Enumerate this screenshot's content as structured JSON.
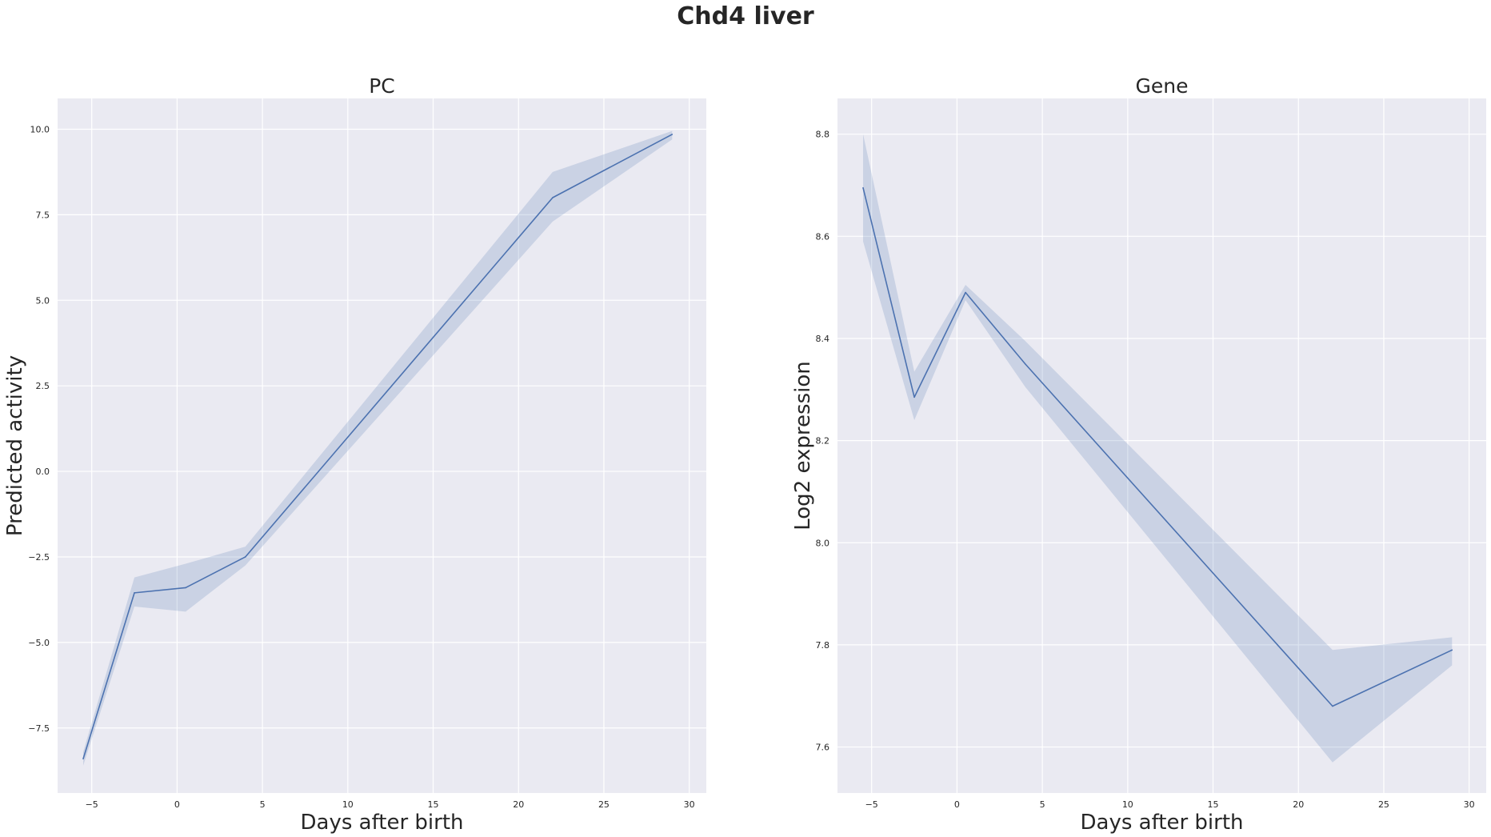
{
  "figure": {
    "suptitle": "Chd4 liver"
  },
  "colors": {
    "line": "#4c72b0",
    "band": "#4c72b0",
    "plot_background": "#eaeaf2",
    "grid": "#ffffff"
  },
  "chart_data": [
    {
      "type": "line",
      "title": "PC",
      "xlabel": "Days after birth",
      "ylabel": "Predicted activity",
      "xlim": [
        -7,
        31
      ],
      "ylim": [
        -9.4,
        10.9
      ],
      "xticks": [
        -5,
        0,
        5,
        10,
        15,
        20,
        25,
        30
      ],
      "xtick_labels": [
        "−5",
        "0",
        "5",
        "10",
        "15",
        "20",
        "25",
        "30"
      ],
      "yticks": [
        -7.5,
        -5.0,
        -2.5,
        0.0,
        2.5,
        5.0,
        7.5,
        10.0
      ],
      "ytick_labels": [
        "−7.5",
        "−5.0",
        "−2.5",
        "0.0",
        "2.5",
        "5.0",
        "7.5",
        "10.0"
      ],
      "grid": true,
      "series": [
        {
          "x": [
            -5.5,
            -2.5,
            0.5,
            4,
            22,
            29
          ],
          "y": [
            -8.4,
            -3.55,
            -3.4,
            -2.5,
            8.0,
            9.85
          ],
          "lower": [
            -8.6,
            -3.95,
            -4.1,
            -2.75,
            7.3,
            9.7
          ],
          "upper": [
            -8.2,
            -3.1,
            -2.7,
            -2.2,
            8.75,
            9.95
          ]
        }
      ]
    },
    {
      "type": "line",
      "title": "Gene",
      "xlabel": "Days after birth",
      "ylabel": "Log2 expression",
      "xlim": [
        -7,
        31
      ],
      "ylim": [
        7.51,
        8.87
      ],
      "xticks": [
        -5,
        0,
        5,
        10,
        15,
        20,
        25,
        30
      ],
      "xtick_labels": [
        "−5",
        "0",
        "5",
        "10",
        "15",
        "20",
        "25",
        "30"
      ],
      "yticks": [
        7.6,
        7.8,
        8.0,
        8.2,
        8.4,
        8.6,
        8.8
      ],
      "ytick_labels": [
        "7.6",
        "7.8",
        "8.0",
        "8.2",
        "8.4",
        "8.6",
        "8.8"
      ],
      "grid": true,
      "series": [
        {
          "x": [
            -5.5,
            -2.5,
            0.5,
            4,
            22,
            29
          ],
          "y": [
            8.695,
            8.285,
            8.49,
            8.35,
            7.68,
            7.79
          ],
          "lower": [
            8.59,
            8.24,
            8.475,
            8.305,
            7.57,
            7.76
          ],
          "upper": [
            8.8,
            8.335,
            8.505,
            8.395,
            7.79,
            7.815
          ]
        }
      ]
    }
  ]
}
